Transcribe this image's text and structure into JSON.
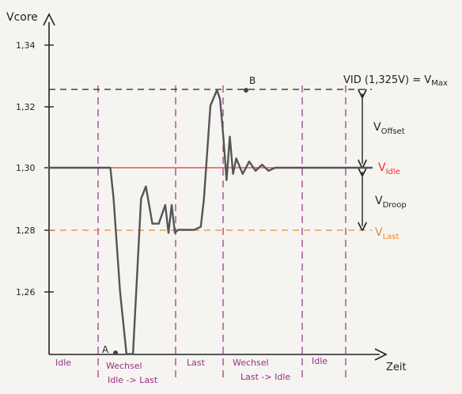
{
  "chart_data": {
    "type": "line",
    "ylabel": "Vcore",
    "xlabel": "Zeit",
    "yticks": [
      "1,34",
      "1,32",
      "1,30",
      "1,28",
      "1,26"
    ],
    "ylim": [
      1.24,
      1.345
    ],
    "grid": false,
    "series": [
      {
        "x": [
          0,
          0.1,
          0.19,
          0.2,
          0.22,
          0.24,
          0.26,
          0.285,
          0.3,
          0.32,
          0.34,
          0.36,
          0.37,
          0.38,
          0.39,
          0.4,
          0.41,
          0.42,
          0.43,
          0.45,
          0.47,
          0.48,
          0.49,
          0.5,
          0.52,
          0.53,
          0.54,
          0.55,
          0.56,
          0.57,
          0.58,
          0.6,
          0.62,
          0.64,
          0.66,
          0.68,
          0.7,
          0.72,
          0.74,
          0.76,
          0.8,
          0.9,
          1.0
        ],
        "y": [
          1.3,
          1.3,
          1.3,
          1.29,
          1.26,
          1.24,
          1.24,
          1.29,
          1.294,
          1.282,
          1.282,
          1.288,
          1.279,
          1.288,
          1.279,
          1.28,
          1.28,
          1.28,
          1.28,
          1.28,
          1.281,
          1.29,
          1.305,
          1.32,
          1.325,
          1.322,
          1.31,
          1.296,
          1.31,
          1.298,
          1.303,
          1.298,
          1.302,
          1.299,
          1.301,
          1.299,
          1.3,
          1.3,
          1.3,
          1.3,
          1.3,
          1.3,
          1.3
        ]
      }
    ],
    "reference_lines": {
      "vid": {
        "label": "VID (1,325V) = V",
        "sub": "Max",
        "value": 1.325
      },
      "idle": {
        "label": "V",
        "sub": "Idle",
        "value": 1.3,
        "color": "#e53333"
      },
      "last": {
        "label": "V",
        "sub": "Last",
        "value": 1.28,
        "color": "#e68a2e"
      }
    },
    "arrows": {
      "offset": {
        "label": "V",
        "sub": "Offset"
      },
      "droop": {
        "label": "V",
        "sub": "Droop"
      }
    },
    "points": {
      "a": "A",
      "b": "B"
    },
    "phases": [
      {
        "line1": "Idle",
        "line2": ""
      },
      {
        "line1": "Wechsel",
        "line2": "Idle -> Last"
      },
      {
        "line1": "Last",
        "line2": ""
      },
      {
        "line1": "Wechsel",
        "line2": "Last -> Idle"
      },
      {
        "line1": "Idle",
        "line2": ""
      }
    ],
    "colors": {
      "curve": "#555555",
      "axis": "#222222",
      "phase": "#9a2e86",
      "idle": "#e53333",
      "last": "#e68a2e"
    }
  }
}
